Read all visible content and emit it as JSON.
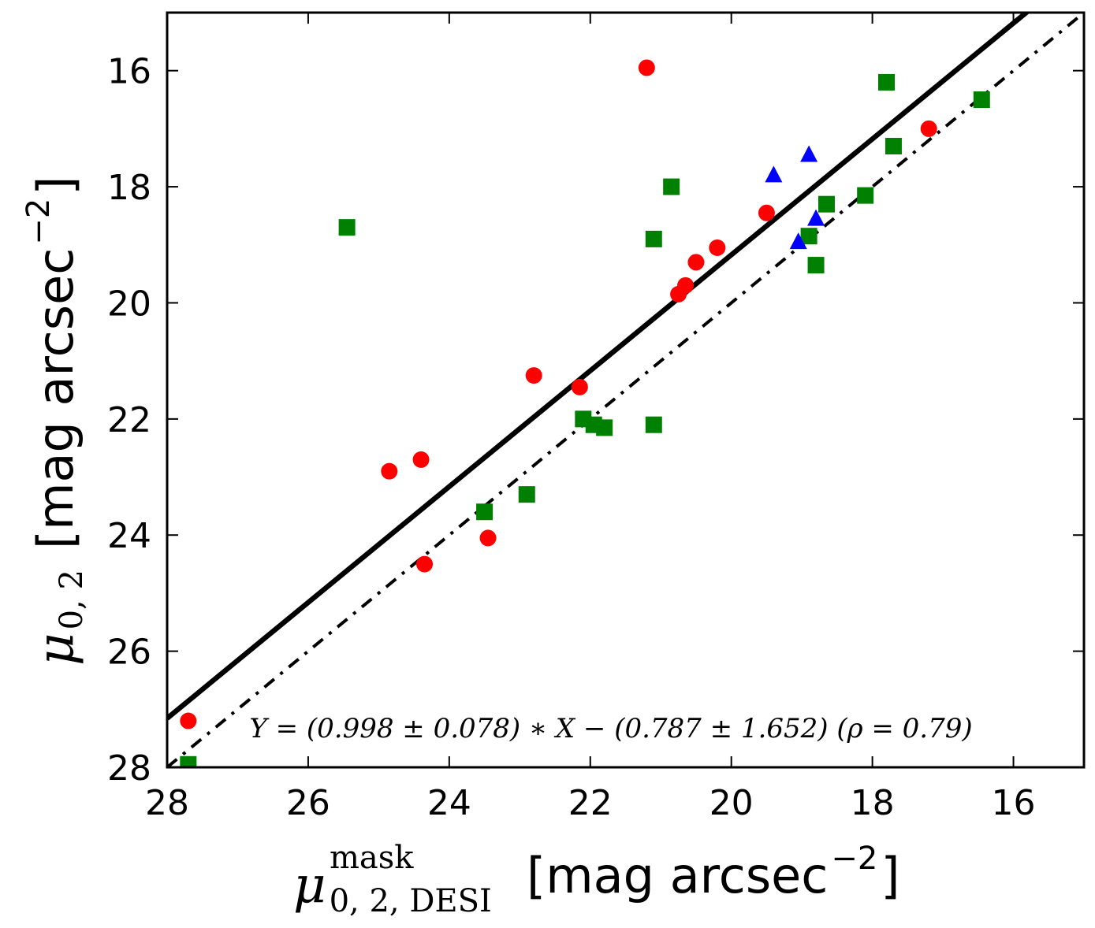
{
  "chart_data": {
    "type": "scatter",
    "x_axis": {
      "label_symbol": "μ",
      "label_subscript": "0, 2, DESI",
      "label_superscript": "mask",
      "label_unit": "[mag arcsec",
      "label_unit_exp": "−2",
      "label_unit_close": "]",
      "range": [
        28,
        15
      ],
      "ticks": [
        28,
        26,
        24,
        22,
        20,
        18,
        16
      ],
      "tick_labels": [
        "28",
        "26",
        "24",
        "22",
        "20",
        "18",
        "16"
      ]
    },
    "y_axis": {
      "label_symbol": "μ",
      "label_subscript": "0, 2",
      "label_unit": "[mag arcsec",
      "label_unit_exp": "−2",
      "label_unit_close": "]",
      "range": [
        28,
        15
      ],
      "ticks": [
        16,
        18,
        20,
        22,
        24,
        26,
        28
      ],
      "tick_labels": [
        "16",
        "18",
        "20",
        "22",
        "24",
        "26",
        "28"
      ]
    },
    "series": [
      {
        "name": "red circles",
        "marker": "circle",
        "color": "#ff0000",
        "points": [
          [
            21.2,
            15.95
          ],
          [
            17.2,
            17.0
          ],
          [
            19.5,
            18.45
          ],
          [
            20.2,
            19.05
          ],
          [
            20.5,
            19.3
          ],
          [
            20.65,
            19.7
          ],
          [
            20.75,
            19.85
          ],
          [
            22.8,
            21.25
          ],
          [
            22.15,
            21.45
          ],
          [
            24.4,
            22.7
          ],
          [
            24.85,
            22.9
          ],
          [
            23.45,
            24.05
          ],
          [
            24.35,
            24.5
          ],
          [
            27.7,
            27.2
          ]
        ]
      },
      {
        "name": "green squares",
        "marker": "square",
        "color": "#008000",
        "points": [
          [
            17.8,
            16.2
          ],
          [
            16.45,
            16.5
          ],
          [
            17.7,
            17.3
          ],
          [
            20.85,
            18.0
          ],
          [
            18.1,
            18.15
          ],
          [
            18.65,
            18.3
          ],
          [
            25.45,
            18.7
          ],
          [
            21.1,
            18.9
          ],
          [
            18.9,
            18.85
          ],
          [
            18.8,
            19.35
          ],
          [
            22.1,
            22.0
          ],
          [
            21.95,
            22.1
          ],
          [
            21.8,
            22.15
          ],
          [
            21.1,
            22.1
          ],
          [
            22.9,
            23.3
          ],
          [
            23.5,
            23.6
          ],
          [
            27.7,
            27.95
          ]
        ]
      },
      {
        "name": "blue triangles",
        "marker": "triangle",
        "color": "#0000ff",
        "points": [
          [
            18.9,
            17.45
          ],
          [
            19.4,
            17.8
          ],
          [
            18.8,
            18.55
          ],
          [
            19.05,
            18.95
          ]
        ]
      }
    ],
    "fit_line": {
      "slope": 0.998,
      "intercept": -0.787,
      "style": "solid",
      "color": "#000000"
    },
    "identity_line": {
      "slope": 1.0,
      "intercept": 0.0,
      "style": "dashdot",
      "color": "#000000"
    },
    "annotation": {
      "text": "Y = (0.998 ± 0.078) ∗ X − (0.787 ± 1.652) (ρ = 0.79)",
      "position": "bottom"
    },
    "grid": false,
    "legend": "none"
  }
}
